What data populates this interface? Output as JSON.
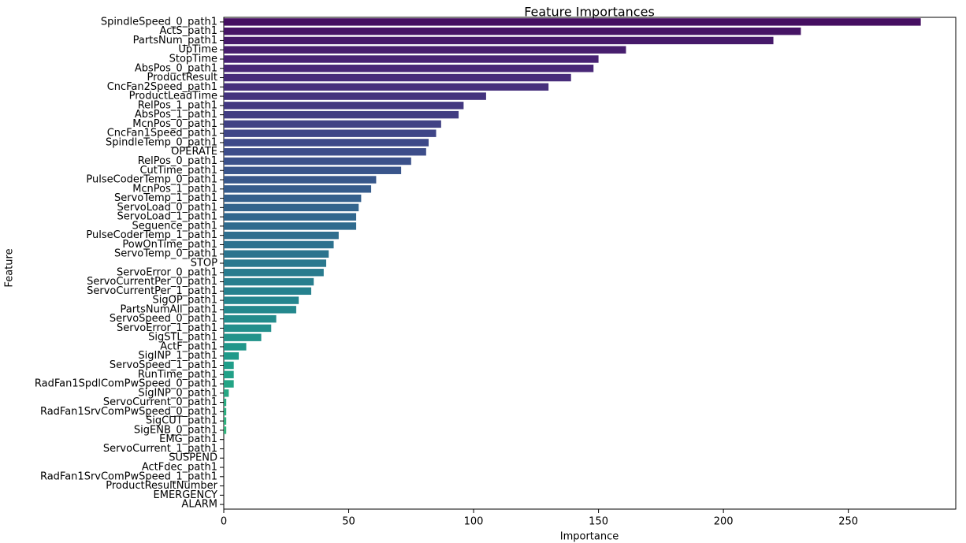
{
  "chart_data": {
    "type": "barh",
    "title": "Feature Importances",
    "xlabel": "Importance",
    "ylabel": "Feature",
    "categories": [
      "SpindleSpeed_0_path1",
      "ActS_path1",
      "PartsNum_path1",
      "UpTime",
      "StopTime",
      "AbsPos_0_path1",
      "ProductResult",
      "CncFan2Speed_path1",
      "ProductLeadTime",
      "RelPos_1_path1",
      "AbsPos_1_path1",
      "McnPos_0_path1",
      "CncFan1Speed_path1",
      "SpindleTemp_0_path1",
      "OPERATE",
      "RelPos_0_path1",
      "CutTime_path1",
      "PulseCoderTemp_0_path1",
      "McnPos_1_path1",
      "ServoTemp_1_path1",
      "ServoLoad_0_path1",
      "ServoLoad_1_path1",
      "Sequence_path1",
      "PulseCoderTemp_1_path1",
      "PowOnTime_path1",
      "ServoTemp_0_path1",
      "STOP",
      "ServoError_0_path1",
      "ServoCurrentPer_0_path1",
      "ServoCurrentPer_1_path1",
      "SigOP_path1",
      "PartsNumAll_path1",
      "ServoSpeed_0_path1",
      "ServoError_1_path1",
      "SigSTL_path1",
      "ActF_path1",
      "SigINP_1_path1",
      "ServoSpeed_1_path1",
      "RunTime_path1",
      "RadFan1SpdlComPwSpeed_0_path1",
      "SigINP_0_path1",
      "ServoCurrent_0_path1",
      "RadFan1SrvComPwSpeed_0_path1",
      "SigCUT_path1",
      "SigENB_0_path1",
      "EMG_path1",
      "ServoCurrent_1_path1",
      "SUSPEND",
      "ActFdec_path1",
      "RadFan1SrvComPwSpeed_1_path1",
      "ProductResultNumber",
      "EMERGENCY",
      "ALARM"
    ],
    "values": [
      279,
      231,
      220,
      161,
      150,
      148,
      139,
      130,
      105,
      96,
      94,
      87,
      85,
      82,
      81,
      75,
      71,
      61,
      59,
      55,
      54,
      53,
      53,
      46,
      44,
      42,
      41,
      40,
      36,
      35,
      30,
      29,
      21,
      19,
      15,
      9,
      6,
      4,
      4,
      4,
      2,
      1,
      1,
      1,
      1,
      0,
      0,
      0,
      0,
      0,
      0,
      0,
      0
    ],
    "palette": "viridis",
    "xlim": [
      0,
      293
    ],
    "xticks": [
      0,
      50,
      100,
      150,
      200,
      250
    ]
  }
}
